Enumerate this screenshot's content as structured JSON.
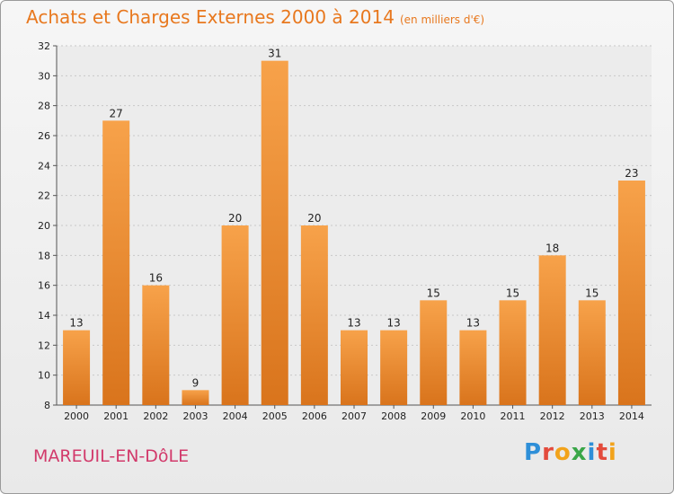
{
  "header": {
    "title": "Achats et Charges Externes 2000 à 2014",
    "unit": "(en milliers d'€)"
  },
  "footer": {
    "commune": "MAREUIL-EN-DôLE",
    "logo": "Proxiti"
  },
  "colors": {
    "bar_light": "#f7a24a",
    "bar_dark": "#d9741c",
    "title": "#e8781e",
    "commune": "#d23a6b"
  },
  "chart_data": {
    "type": "bar",
    "categories": [
      "2000",
      "2001",
      "2002",
      "2003",
      "2004",
      "2005",
      "2006",
      "2007",
      "2008",
      "2009",
      "2010",
      "2011",
      "2012",
      "2013",
      "2014"
    ],
    "values": [
      13,
      27,
      16,
      9,
      20,
      31,
      20,
      13,
      13,
      15,
      13,
      15,
      18,
      15,
      23
    ],
    "title": "Achats et Charges Externes 2000 à 2014",
    "xlabel": "",
    "ylabel": "",
    "ylim": [
      8,
      32
    ],
    "yticks": [
      8,
      10,
      12,
      14,
      16,
      18,
      20,
      22,
      24,
      26,
      28,
      30,
      32
    ],
    "grid": true,
    "data_labels": true
  }
}
